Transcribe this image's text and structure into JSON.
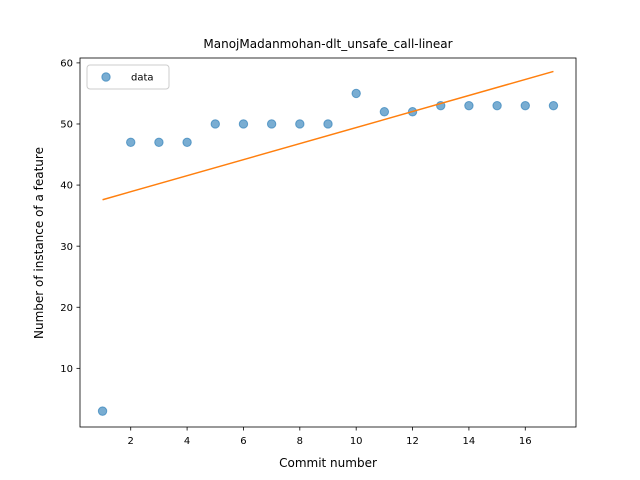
{
  "chart_data": {
    "type": "scatter",
    "title": "ManojMadanmohan-dlt_unsafe_call-linear",
    "xlabel": "Commit number",
    "ylabel": "Number of instance of a feature",
    "xlim": [
      0.2,
      17.8
    ],
    "ylim": [
      0.4,
      60.8
    ],
    "x_ticks": [
      2,
      4,
      6,
      8,
      10,
      12,
      14,
      16
    ],
    "y_ticks": [
      10,
      20,
      30,
      40,
      50,
      60
    ],
    "grid": false,
    "legend_position": "top-left",
    "series": [
      {
        "name": "data",
        "kind": "scatter",
        "color": "#1f77b4",
        "x": [
          1,
          2,
          3,
          4,
          5,
          6,
          7,
          8,
          9,
          10,
          11,
          12,
          13,
          14,
          15,
          16,
          17
        ],
        "y": [
          3,
          47,
          47,
          47,
          50,
          50,
          50,
          50,
          50,
          55,
          52,
          52,
          53,
          53,
          53,
          53,
          53
        ]
      },
      {
        "kind": "line",
        "color": "#ff7f0e",
        "x": [
          1,
          17
        ],
        "y": [
          37.6,
          58.6
        ]
      }
    ]
  }
}
